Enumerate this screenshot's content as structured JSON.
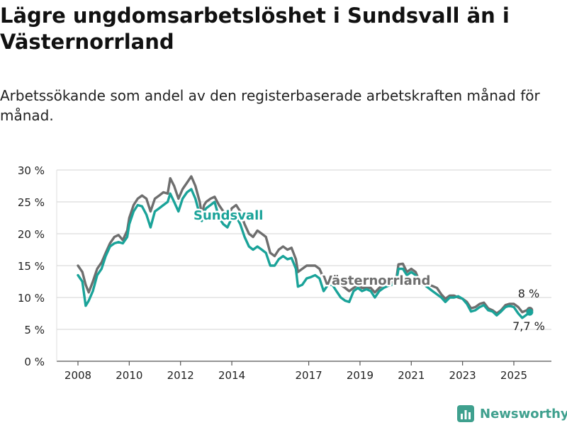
{
  "header": {
    "title": "Lägre ungdomsarbetslöshet i Sundsvall än i Västernorrland",
    "subtitle": "Arbetssökande som andel av den registerbaserade arbetskraften månad för månad."
  },
  "brand": {
    "logo_text": "Newsworthy",
    "logo_color": "#3fa08e"
  },
  "chart_data": {
    "type": "line",
    "title": "Lägre ungdomsarbetslöshet i Sundsvall än i Västernorrland",
    "subtitle": "Arbetssökande som andel av den registerbaserade arbetskraften månad för månad.",
    "xlabel": "",
    "ylabel": "",
    "xlim": [
      2007.5,
      2025.9
    ],
    "ylim": [
      0,
      30
    ],
    "yticks": [
      0,
      5,
      10,
      15,
      20,
      25,
      30
    ],
    "ytick_labels": [
      "0 %",
      "5 %",
      "10 %",
      "15 %",
      "20 %",
      "25 %",
      "30 %"
    ],
    "xticks": [
      2008,
      2010,
      2012,
      2014,
      2017,
      2019,
      2021,
      2023,
      2025
    ],
    "xtick_labels": [
      "2008",
      "2010",
      "2012",
      "2014",
      "2017",
      "2019",
      "2021",
      "2023",
      "2025"
    ],
    "grid": "horizontal",
    "legend": "none",
    "series": [
      {
        "name": "Västernorrland",
        "color": "#6e6e6e",
        "end_label": "8 %",
        "points": [
          [
            2008.0,
            15.0
          ],
          [
            2008.17,
            14.0
          ],
          [
            2008.3,
            12.0
          ],
          [
            2008.42,
            10.8
          ],
          [
            2008.58,
            12.5
          ],
          [
            2008.75,
            14.5
          ],
          [
            2008.92,
            15.5
          ],
          [
            2009.08,
            17.0
          ],
          [
            2009.25,
            18.5
          ],
          [
            2009.42,
            19.5
          ],
          [
            2009.58,
            19.8
          ],
          [
            2009.75,
            19.0
          ],
          [
            2009.92,
            20.5
          ],
          [
            2010.0,
            22.5
          ],
          [
            2010.17,
            24.5
          ],
          [
            2010.33,
            25.5
          ],
          [
            2010.5,
            26.0
          ],
          [
            2010.67,
            25.5
          ],
          [
            2010.83,
            23.5
          ],
          [
            2011.0,
            25.5
          ],
          [
            2011.17,
            26.0
          ],
          [
            2011.33,
            26.5
          ],
          [
            2011.5,
            26.3
          ],
          [
            2011.6,
            28.7
          ],
          [
            2011.75,
            27.5
          ],
          [
            2011.92,
            25.5
          ],
          [
            2012.08,
            27.0
          ],
          [
            2012.25,
            28.0
          ],
          [
            2012.42,
            29.0
          ],
          [
            2012.58,
            27.5
          ],
          [
            2012.75,
            25.0
          ],
          [
            2012.83,
            23.0
          ],
          [
            2012.92,
            24.5
          ],
          [
            2013.0,
            25.0
          ],
          [
            2013.17,
            25.5
          ],
          [
            2013.33,
            25.8
          ],
          [
            2013.5,
            24.5
          ],
          [
            2013.67,
            23.5
          ],
          [
            2013.83,
            22.5
          ],
          [
            2014.0,
            24.0
          ],
          [
            2014.17,
            24.5
          ],
          [
            2014.33,
            23.5
          ],
          [
            2014.5,
            21.5
          ],
          [
            2014.67,
            20.0
          ],
          [
            2014.83,
            19.5
          ],
          [
            2015.0,
            20.5
          ],
          [
            2015.17,
            20.0
          ],
          [
            2015.33,
            19.5
          ],
          [
            2015.5,
            17.0
          ],
          [
            2015.67,
            16.5
          ],
          [
            2015.83,
            17.5
          ],
          [
            2016.0,
            18.0
          ],
          [
            2016.17,
            17.5
          ],
          [
            2016.33,
            17.8
          ],
          [
            2016.5,
            16.0
          ],
          [
            2016.58,
            14.0
          ],
          [
            2016.75,
            14.5
          ],
          [
            2016.92,
            15.0
          ],
          [
            2017.08,
            15.0
          ],
          [
            2017.25,
            15.0
          ],
          [
            2017.42,
            14.5
          ],
          [
            2017.58,
            13.0
          ],
          [
            2017.75,
            12.5
          ],
          [
            2017.92,
            13.0
          ],
          [
            2018.08,
            12.0
          ],
          [
            2018.25,
            12.0
          ],
          [
            2018.42,
            11.5
          ],
          [
            2018.58,
            11.0
          ],
          [
            2018.75,
            11.5
          ],
          [
            2018.92,
            12.0
          ],
          [
            2019.08,
            11.5
          ],
          [
            2019.25,
            11.5
          ],
          [
            2019.42,
            11.5
          ],
          [
            2019.58,
            10.8
          ],
          [
            2019.75,
            11.5
          ],
          [
            2019.92,
            12.0
          ],
          [
            2020.08,
            12.0
          ],
          [
            2020.25,
            12.5
          ],
          [
            2020.42,
            13.0
          ],
          [
            2020.5,
            15.2
          ],
          [
            2020.67,
            15.3
          ],
          [
            2020.83,
            14.0
          ],
          [
            2021.0,
            14.5
          ],
          [
            2021.17,
            14.0
          ],
          [
            2021.33,
            12.5
          ],
          [
            2021.5,
            12.5
          ],
          [
            2021.67,
            12.0
          ],
          [
            2021.83,
            11.8
          ],
          [
            2022.0,
            11.5
          ],
          [
            2022.17,
            10.5
          ],
          [
            2022.33,
            9.8
          ],
          [
            2022.5,
            10.3
          ],
          [
            2022.67,
            10.3
          ],
          [
            2022.83,
            10.0
          ],
          [
            2023.0,
            9.8
          ],
          [
            2023.17,
            9.3
          ],
          [
            2023.33,
            8.3
          ],
          [
            2023.5,
            8.5
          ],
          [
            2023.67,
            9.0
          ],
          [
            2023.83,
            9.2
          ],
          [
            2024.0,
            8.3
          ],
          [
            2024.17,
            8.0
          ],
          [
            2024.33,
            7.5
          ],
          [
            2024.5,
            8.0
          ],
          [
            2024.67,
            8.8
          ],
          [
            2024.83,
            9.0
          ],
          [
            2025.0,
            9.0
          ],
          [
            2025.17,
            8.5
          ],
          [
            2025.33,
            7.7
          ],
          [
            2025.5,
            8.0
          ],
          [
            2025.62,
            8.0
          ]
        ]
      },
      {
        "name": "Sundsvall",
        "color": "#1aa399",
        "end_label": "7,7 %",
        "points": [
          [
            2008.0,
            13.5
          ],
          [
            2008.17,
            12.5
          ],
          [
            2008.3,
            8.7
          ],
          [
            2008.42,
            9.5
          ],
          [
            2008.58,
            11.0
          ],
          [
            2008.75,
            13.5
          ],
          [
            2008.92,
            14.5
          ],
          [
            2009.08,
            16.5
          ],
          [
            2009.25,
            18.0
          ],
          [
            2009.42,
            18.5
          ],
          [
            2009.58,
            18.7
          ],
          [
            2009.75,
            18.5
          ],
          [
            2009.92,
            19.5
          ],
          [
            2010.0,
            21.5
          ],
          [
            2010.17,
            23.5
          ],
          [
            2010.33,
            24.5
          ],
          [
            2010.5,
            24.3
          ],
          [
            2010.67,
            23.0
          ],
          [
            2010.83,
            21.0
          ],
          [
            2011.0,
            23.5
          ],
          [
            2011.17,
            24.0
          ],
          [
            2011.33,
            24.5
          ],
          [
            2011.5,
            25.0
          ],
          [
            2011.6,
            26.3
          ],
          [
            2011.75,
            25.0
          ],
          [
            2011.92,
            23.5
          ],
          [
            2012.08,
            25.5
          ],
          [
            2012.25,
            26.5
          ],
          [
            2012.42,
            27.0
          ],
          [
            2012.58,
            25.5
          ],
          [
            2012.75,
            23.0
          ],
          [
            2012.83,
            22.0
          ],
          [
            2012.92,
            23.5
          ],
          [
            2013.0,
            24.0
          ],
          [
            2013.17,
            24.5
          ],
          [
            2013.33,
            25.0
          ],
          [
            2013.5,
            22.5
          ],
          [
            2013.67,
            21.5
          ],
          [
            2013.83,
            21.0
          ],
          [
            2014.0,
            22.5
          ],
          [
            2014.17,
            22.7
          ],
          [
            2014.33,
            21.5
          ],
          [
            2014.5,
            19.5
          ],
          [
            2014.67,
            18.0
          ],
          [
            2014.83,
            17.5
          ],
          [
            2015.0,
            18.0
          ],
          [
            2015.17,
            17.5
          ],
          [
            2015.33,
            17.0
          ],
          [
            2015.5,
            15.0
          ],
          [
            2015.67,
            15.0
          ],
          [
            2015.83,
            16.0
          ],
          [
            2016.0,
            16.5
          ],
          [
            2016.17,
            16.0
          ],
          [
            2016.33,
            16.2
          ],
          [
            2016.5,
            14.5
          ],
          [
            2016.58,
            11.7
          ],
          [
            2016.75,
            12.0
          ],
          [
            2016.92,
            13.0
          ],
          [
            2017.08,
            13.2
          ],
          [
            2017.25,
            13.5
          ],
          [
            2017.42,
            13.0
          ],
          [
            2017.58,
            11.0
          ],
          [
            2017.75,
            12.0
          ],
          [
            2017.92,
            12.0
          ],
          [
            2018.08,
            11.0
          ],
          [
            2018.25,
            10.0
          ],
          [
            2018.42,
            9.5
          ],
          [
            2018.58,
            9.3
          ],
          [
            2018.75,
            11.0
          ],
          [
            2018.92,
            11.5
          ],
          [
            2019.08,
            11.0
          ],
          [
            2019.25,
            11.3
          ],
          [
            2019.42,
            11.0
          ],
          [
            2019.58,
            10.0
          ],
          [
            2019.75,
            11.0
          ],
          [
            2019.92,
            11.5
          ],
          [
            2020.08,
            11.8
          ],
          [
            2020.25,
            12.0
          ],
          [
            2020.42,
            12.5
          ],
          [
            2020.5,
            14.5
          ],
          [
            2020.67,
            14.5
          ],
          [
            2020.83,
            13.5
          ],
          [
            2021.0,
            14.0
          ],
          [
            2021.17,
            13.5
          ],
          [
            2021.33,
            12.0
          ],
          [
            2021.5,
            12.0
          ],
          [
            2021.67,
            11.5
          ],
          [
            2021.83,
            11.0
          ],
          [
            2022.0,
            10.5
          ],
          [
            2022.17,
            10.0
          ],
          [
            2022.33,
            9.3
          ],
          [
            2022.5,
            10.0
          ],
          [
            2022.67,
            10.0
          ],
          [
            2022.83,
            10.2
          ],
          [
            2023.0,
            9.8
          ],
          [
            2023.17,
            9.0
          ],
          [
            2023.33,
            7.8
          ],
          [
            2023.5,
            8.0
          ],
          [
            2023.67,
            8.5
          ],
          [
            2023.83,
            8.8
          ],
          [
            2024.0,
            8.0
          ],
          [
            2024.17,
            7.8
          ],
          [
            2024.33,
            7.2
          ],
          [
            2024.5,
            7.8
          ],
          [
            2024.67,
            8.5
          ],
          [
            2024.83,
            8.7
          ],
          [
            2025.0,
            8.5
          ],
          [
            2025.17,
            7.5
          ],
          [
            2025.33,
            6.8
          ],
          [
            2025.5,
            7.3
          ],
          [
            2025.62,
            7.7
          ]
        ]
      }
    ]
  }
}
